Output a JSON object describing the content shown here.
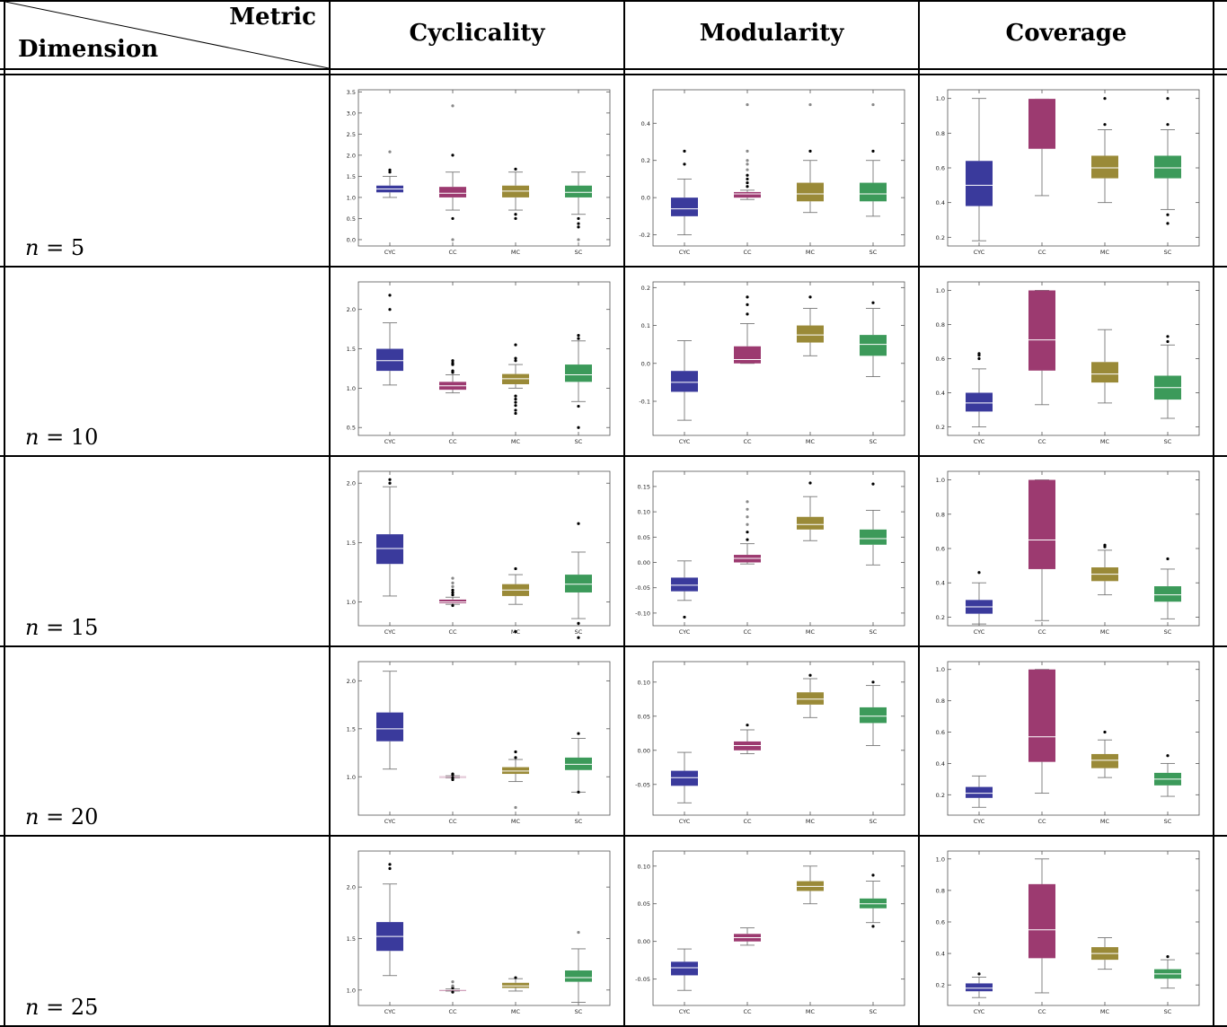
{
  "header": {
    "metric_label": "Metric",
    "dimension_label": "Dimension",
    "columns": [
      "Cyclicality",
      "Modularity",
      "Coverage"
    ]
  },
  "rows": [
    {
      "var": "n",
      "eq": "= 5"
    },
    {
      "var": "n",
      "eq": "= 10"
    },
    {
      "var": "n",
      "eq": "= 15"
    },
    {
      "var": "n",
      "eq": "= 20"
    },
    {
      "var": "n",
      "eq": "= 25"
    }
  ],
  "colors": {
    "CYC": "#3a3a9c",
    "CC": "#9c3a70",
    "MC": "#9a8a38",
    "SC": "#3c9a5a"
  },
  "chart_data": [
    {
      "type": "box",
      "metric": "Cyclicality",
      "dimension": "n = 5",
      "categories": [
        "CYC",
        "CC",
        "MC",
        "SC"
      ],
      "yticks": [
        0.0,
        0.5,
        1.0,
        1.5,
        2.0,
        2.5,
        3.0,
        3.5
      ],
      "ylim": [
        -0.15,
        3.55
      ],
      "boxes": [
        {
          "q1": 1.12,
          "median": 1.2,
          "q3": 1.28,
          "whisker_low": 1.0,
          "whisker_high": 1.5,
          "outliers": [
            1.6,
            1.65,
            2.08
          ]
        },
        {
          "q1": 1.0,
          "median": 1.1,
          "q3": 1.25,
          "whisker_low": 0.7,
          "whisker_high": 1.6,
          "outliers": [
            0.0,
            0.5,
            2.0,
            3.17
          ]
        },
        {
          "q1": 1.0,
          "median": 1.15,
          "q3": 1.28,
          "whisker_low": 0.7,
          "whisker_high": 1.6,
          "outliers": [
            0.5,
            0.6,
            1.67
          ]
        },
        {
          "q1": 1.0,
          "median": 1.12,
          "q3": 1.28,
          "whisker_low": 0.6,
          "whisker_high": 1.6,
          "outliers": [
            0.0,
            0.3,
            0.38,
            0.5
          ]
        }
      ]
    },
    {
      "type": "box",
      "metric": "Modularity",
      "dimension": "n = 5",
      "categories": [
        "CYC",
        "CC",
        "MC",
        "SC"
      ],
      "yticks": [
        -0.2,
        0.0,
        0.2,
        0.4
      ],
      "ylim": [
        -0.26,
        0.58
      ],
      "boxes": [
        {
          "q1": -0.1,
          "median": -0.06,
          "q3": 0.0,
          "whisker_low": -0.2,
          "whisker_high": 0.1,
          "outliers": [
            0.18,
            0.25
          ]
        },
        {
          "q1": 0.0,
          "median": 0.02,
          "q3": 0.03,
          "whisker_low": -0.01,
          "whisker_high": 0.04,
          "outliers": [
            0.06,
            0.08,
            0.1,
            0.12,
            0.15,
            0.18,
            0.2,
            0.25,
            0.5
          ]
        },
        {
          "q1": -0.02,
          "median": 0.02,
          "q3": 0.08,
          "whisker_low": -0.08,
          "whisker_high": 0.2,
          "outliers": [
            0.25,
            0.5
          ]
        },
        {
          "q1": -0.02,
          "median": 0.02,
          "q3": 0.08,
          "whisker_low": -0.1,
          "whisker_high": 0.2,
          "outliers": [
            0.25,
            0.5
          ]
        }
      ]
    },
    {
      "type": "box",
      "metric": "Coverage",
      "dimension": "n = 5",
      "categories": [
        "CYC",
        "CC",
        "MC",
        "SC"
      ],
      "yticks": [
        0.2,
        0.4,
        0.6,
        0.8,
        1.0
      ],
      "ylim": [
        0.15,
        1.05
      ],
      "boxes": [
        {
          "q1": 0.38,
          "median": 0.5,
          "q3": 0.64,
          "whisker_low": 0.18,
          "whisker_high": 1.0,
          "outliers": []
        },
        {
          "q1": 0.71,
          "median": 1.0,
          "q3": 1.0,
          "whisker_low": 0.44,
          "whisker_high": 1.0,
          "outliers": []
        },
        {
          "q1": 0.54,
          "median": 0.6,
          "q3": 0.67,
          "whisker_low": 0.4,
          "whisker_high": 0.82,
          "outliers": [
            0.85,
            1.0
          ]
        },
        {
          "q1": 0.54,
          "median": 0.6,
          "q3": 0.67,
          "whisker_low": 0.36,
          "whisker_high": 0.82,
          "outliers": [
            0.28,
            0.33,
            0.85,
            1.0
          ]
        }
      ]
    },
    {
      "type": "box",
      "metric": "Cyclicality",
      "dimension": "n = 10",
      "categories": [
        "CYC",
        "CC",
        "MC",
        "SC"
      ],
      "yticks": [
        0.5,
        1.0,
        1.5,
        2.0
      ],
      "ylim": [
        0.4,
        2.35
      ],
      "boxes": [
        {
          "q1": 1.22,
          "median": 1.35,
          "q3": 1.5,
          "whisker_low": 1.04,
          "whisker_high": 1.83,
          "outliers": [
            2.0,
            2.18
          ]
        },
        {
          "q1": 0.98,
          "median": 1.03,
          "q3": 1.08,
          "whisker_low": 0.94,
          "whisker_high": 1.17,
          "outliers": [
            1.2,
            1.22,
            1.3,
            1.32,
            1.35
          ]
        },
        {
          "q1": 1.05,
          "median": 1.12,
          "q3": 1.18,
          "whisker_low": 1.0,
          "whisker_high": 1.3,
          "outliers": [
            0.68,
            0.72,
            0.78,
            0.82,
            0.86,
            0.9,
            1.35,
            1.38,
            1.55
          ]
        },
        {
          "q1": 1.08,
          "median": 1.17,
          "q3": 1.3,
          "whisker_low": 0.83,
          "whisker_high": 1.6,
          "outliers": [
            0.5,
            0.77,
            1.63,
            1.67
          ]
        }
      ]
    },
    {
      "type": "box",
      "metric": "Modularity",
      "dimension": "n = 10",
      "categories": [
        "CYC",
        "CC",
        "MC",
        "SC"
      ],
      "yticks": [
        -0.1,
        0.0,
        0.1,
        0.2
      ],
      "ylim": [
        -0.19,
        0.215
      ],
      "boxes": [
        {
          "q1": -0.075,
          "median": -0.05,
          "q3": -0.02,
          "whisker_low": -0.15,
          "whisker_high": 0.06,
          "outliers": []
        },
        {
          "q1": 0.0,
          "median": 0.01,
          "q3": 0.045,
          "whisker_low": 0.0,
          "whisker_high": 0.105,
          "outliers": [
            0.13,
            0.155,
            0.175
          ]
        },
        {
          "q1": 0.055,
          "median": 0.075,
          "q3": 0.1,
          "whisker_low": 0.02,
          "whisker_high": 0.145,
          "outliers": [
            0.175
          ]
        },
        {
          "q1": 0.02,
          "median": 0.05,
          "q3": 0.075,
          "whisker_low": -0.035,
          "whisker_high": 0.145,
          "outliers": [
            0.16
          ]
        }
      ]
    },
    {
      "type": "box",
      "metric": "Coverage",
      "dimension": "n = 10",
      "categories": [
        "CYC",
        "CC",
        "MC",
        "SC"
      ],
      "yticks": [
        0.2,
        0.4,
        0.6,
        0.8,
        1.0
      ],
      "ylim": [
        0.15,
        1.05
      ],
      "boxes": [
        {
          "q1": 0.29,
          "median": 0.34,
          "q3": 0.4,
          "whisker_low": 0.2,
          "whisker_high": 0.54,
          "outliers": [
            0.6,
            0.62,
            0.63
          ]
        },
        {
          "q1": 0.53,
          "median": 0.71,
          "q3": 1.0,
          "whisker_low": 0.33,
          "whisker_high": 1.0,
          "outliers": []
        },
        {
          "q1": 0.46,
          "median": 0.51,
          "q3": 0.58,
          "whisker_low": 0.34,
          "whisker_high": 0.77,
          "outliers": []
        },
        {
          "q1": 0.36,
          "median": 0.43,
          "q3": 0.5,
          "whisker_low": 0.25,
          "whisker_high": 0.68,
          "outliers": [
            0.7,
            0.73
          ]
        }
      ]
    },
    {
      "type": "box",
      "metric": "Cyclicality",
      "dimension": "n = 15",
      "categories": [
        "CYC",
        "CC",
        "MC",
        "SC"
      ],
      "yticks": [
        1.0,
        1.5,
        2.0
      ],
      "ylim": [
        0.8,
        2.1
      ],
      "boxes": [
        {
          "q1": 1.32,
          "median": 1.45,
          "q3": 1.57,
          "whisker_low": 1.05,
          "whisker_high": 1.97,
          "outliers": [
            2.0,
            2.03
          ]
        },
        {
          "q1": 0.99,
          "median": 1.0,
          "q3": 1.02,
          "whisker_low": 0.98,
          "whisker_high": 1.04,
          "outliers": [
            0.97,
            1.06,
            1.08,
            1.1,
            1.13,
            1.16,
            1.2
          ]
        },
        {
          "q1": 1.05,
          "median": 1.1,
          "q3": 1.15,
          "whisker_low": 0.98,
          "whisker_high": 1.23,
          "outliers": [
            0.75,
            1.28
          ]
        },
        {
          "q1": 1.08,
          "median": 1.15,
          "q3": 1.23,
          "whisker_low": 0.86,
          "whisker_high": 1.42,
          "outliers": [
            0.7,
            0.82,
            1.66
          ]
        }
      ]
    },
    {
      "type": "box",
      "metric": "Modularity",
      "dimension": "n = 15",
      "categories": [
        "CYC",
        "CC",
        "MC",
        "SC"
      ],
      "yticks": [
        -0.1,
        -0.05,
        0.0,
        0.05,
        0.1,
        0.15
      ],
      "ylim": [
        -0.125,
        0.18
      ],
      "boxes": [
        {
          "q1": -0.057,
          "median": -0.045,
          "q3": -0.03,
          "whisker_low": -0.075,
          "whisker_high": 0.003,
          "outliers": [
            -0.108
          ]
        },
        {
          "q1": 0.0,
          "median": 0.008,
          "q3": 0.015,
          "whisker_low": -0.003,
          "whisker_high": 0.037,
          "outliers": [
            0.045,
            0.06,
            0.075,
            0.09,
            0.105,
            0.12
          ]
        },
        {
          "q1": 0.065,
          "median": 0.075,
          "q3": 0.09,
          "whisker_low": 0.043,
          "whisker_high": 0.13,
          "outliers": [
            0.157
          ]
        },
        {
          "q1": 0.035,
          "median": 0.047,
          "q3": 0.065,
          "whisker_low": -0.005,
          "whisker_high": 0.103,
          "outliers": [
            0.155
          ]
        }
      ]
    },
    {
      "type": "box",
      "metric": "Coverage",
      "dimension": "n = 15",
      "categories": [
        "CYC",
        "CC",
        "MC",
        "SC"
      ],
      "yticks": [
        0.2,
        0.4,
        0.6,
        0.8,
        1.0
      ],
      "ylim": [
        0.15,
        1.05
      ],
      "boxes": [
        {
          "q1": 0.22,
          "median": 0.26,
          "q3": 0.3,
          "whisker_low": 0.16,
          "whisker_high": 0.4,
          "outliers": [
            0.46
          ]
        },
        {
          "q1": 0.48,
          "median": 0.65,
          "q3": 1.0,
          "whisker_low": 0.18,
          "whisker_high": 1.0,
          "outliers": []
        },
        {
          "q1": 0.41,
          "median": 0.45,
          "q3": 0.49,
          "whisker_low": 0.33,
          "whisker_high": 0.59,
          "outliers": [
            0.61,
            0.62
          ]
        },
        {
          "q1": 0.29,
          "median": 0.33,
          "q3": 0.38,
          "whisker_low": 0.19,
          "whisker_high": 0.48,
          "outliers": [
            0.54
          ]
        }
      ]
    },
    {
      "type": "box",
      "metric": "Cyclicality",
      "dimension": "n = 20",
      "categories": [
        "CYC",
        "CC",
        "MC",
        "SC"
      ],
      "yticks": [
        1.0,
        1.5,
        2.0
      ],
      "ylim": [
        0.6,
        2.2
      ],
      "boxes": [
        {
          "q1": 1.37,
          "median": 1.5,
          "q3": 1.67,
          "whisker_low": 1.08,
          "whisker_high": 2.1,
          "outliers": []
        },
        {
          "q1": 0.995,
          "median": 1.0,
          "q3": 1.005,
          "whisker_low": 0.99,
          "whisker_high": 1.01,
          "outliers": [
            0.97,
            0.99,
            1.02,
            1.03
          ]
        },
        {
          "q1": 1.03,
          "median": 1.06,
          "q3": 1.1,
          "whisker_low": 0.95,
          "whisker_high": 1.18,
          "outliers": [
            0.68,
            1.2,
            1.26
          ]
        },
        {
          "q1": 1.07,
          "median": 1.13,
          "q3": 1.2,
          "whisker_low": 0.84,
          "whisker_high": 1.4,
          "outliers": [
            0.84,
            1.45
          ]
        }
      ]
    },
    {
      "type": "box",
      "metric": "Modularity",
      "dimension": "n = 20",
      "categories": [
        "CYC",
        "CC",
        "MC",
        "SC"
      ],
      "yticks": [
        -0.05,
        0.0,
        0.05,
        0.1
      ],
      "ylim": [
        -0.095,
        0.13
      ],
      "boxes": [
        {
          "q1": -0.052,
          "median": -0.04,
          "q3": -0.03,
          "whisker_low": -0.077,
          "whisker_high": -0.003,
          "outliers": []
        },
        {
          "q1": 0.0,
          "median": 0.007,
          "q3": 0.013,
          "whisker_low": -0.005,
          "whisker_high": 0.03,
          "outliers": [
            0.037
          ]
        },
        {
          "q1": 0.067,
          "median": 0.075,
          "q3": 0.085,
          "whisker_low": 0.048,
          "whisker_high": 0.105,
          "outliers": [
            0.11
          ]
        },
        {
          "q1": 0.04,
          "median": 0.05,
          "q3": 0.063,
          "whisker_low": 0.007,
          "whisker_high": 0.095,
          "outliers": [
            0.1
          ]
        }
      ]
    },
    {
      "type": "box",
      "metric": "Coverage",
      "dimension": "n = 20",
      "categories": [
        "CYC",
        "CC",
        "MC",
        "SC"
      ],
      "yticks": [
        0.2,
        0.4,
        0.6,
        0.8,
        1.0
      ],
      "ylim": [
        0.07,
        1.05
      ],
      "boxes": [
        {
          "q1": 0.18,
          "median": 0.21,
          "q3": 0.25,
          "whisker_low": 0.12,
          "whisker_high": 0.32,
          "outliers": []
        },
        {
          "q1": 0.41,
          "median": 0.57,
          "q3": 1.0,
          "whisker_low": 0.21,
          "whisker_high": 1.0,
          "outliers": []
        },
        {
          "q1": 0.37,
          "median": 0.42,
          "q3": 0.46,
          "whisker_low": 0.31,
          "whisker_high": 0.55,
          "outliers": [
            0.6
          ]
        },
        {
          "q1": 0.26,
          "median": 0.3,
          "q3": 0.34,
          "whisker_low": 0.19,
          "whisker_high": 0.4,
          "outliers": [
            0.45
          ]
        }
      ]
    },
    {
      "type": "box",
      "metric": "Cyclicality",
      "dimension": "n = 25",
      "categories": [
        "CYC",
        "CC",
        "MC",
        "SC"
      ],
      "yticks": [
        1.0,
        1.5,
        2.0
      ],
      "ylim": [
        0.85,
        2.35
      ],
      "boxes": [
        {
          "q1": 1.38,
          "median": 1.52,
          "q3": 1.66,
          "whisker_low": 1.14,
          "whisker_high": 2.03,
          "outliers": [
            2.18,
            2.22
          ]
        },
        {
          "q1": 0.995,
          "median": 1.0,
          "q3": 1.005,
          "whisker_low": 0.99,
          "whisker_high": 1.01,
          "outliers": [
            0.98,
            1.02,
            1.04,
            1.08
          ]
        },
        {
          "q1": 1.02,
          "median": 1.04,
          "q3": 1.07,
          "whisker_low": 0.99,
          "whisker_high": 1.11,
          "outliers": [
            1.12
          ]
        },
        {
          "q1": 1.08,
          "median": 1.12,
          "q3": 1.19,
          "whisker_low": 0.88,
          "whisker_high": 1.4,
          "outliers": [
            1.56
          ]
        }
      ]
    },
    {
      "type": "box",
      "metric": "Modularity",
      "dimension": "n = 25",
      "categories": [
        "CYC",
        "CC",
        "MC",
        "SC"
      ],
      "yticks": [
        -0.05,
        0.0,
        0.05,
        0.1
      ],
      "ylim": [
        -0.085,
        0.12
      ],
      "boxes": [
        {
          "q1": -0.045,
          "median": -0.035,
          "q3": -0.027,
          "whisker_low": -0.065,
          "whisker_high": -0.01,
          "outliers": []
        },
        {
          "q1": 0.0,
          "median": 0.005,
          "q3": 0.01,
          "whisker_low": -0.005,
          "whisker_high": 0.018,
          "outliers": []
        },
        {
          "q1": 0.067,
          "median": 0.073,
          "q3": 0.08,
          "whisker_low": 0.05,
          "whisker_high": 0.1,
          "outliers": []
        },
        {
          "q1": 0.044,
          "median": 0.05,
          "q3": 0.057,
          "whisker_low": 0.025,
          "whisker_high": 0.08,
          "outliers": [
            0.02,
            0.088
          ]
        }
      ]
    },
    {
      "type": "box",
      "metric": "Coverage",
      "dimension": "n = 25",
      "categories": [
        "CYC",
        "CC",
        "MC",
        "SC"
      ],
      "yticks": [
        0.2,
        0.4,
        0.6,
        0.8,
        1.0
      ],
      "ylim": [
        0.07,
        1.05
      ],
      "boxes": [
        {
          "q1": 0.16,
          "median": 0.18,
          "q3": 0.21,
          "whisker_low": 0.12,
          "whisker_high": 0.25,
          "outliers": [
            0.27
          ]
        },
        {
          "q1": 0.37,
          "median": 0.55,
          "q3": 0.84,
          "whisker_low": 0.15,
          "whisker_high": 1.0,
          "outliers": []
        },
        {
          "q1": 0.36,
          "median": 0.4,
          "q3": 0.44,
          "whisker_low": 0.3,
          "whisker_high": 0.5,
          "outliers": []
        },
        {
          "q1": 0.24,
          "median": 0.27,
          "q3": 0.3,
          "whisker_low": 0.18,
          "whisker_high": 0.36,
          "outliers": [
            0.38
          ]
        }
      ]
    }
  ]
}
